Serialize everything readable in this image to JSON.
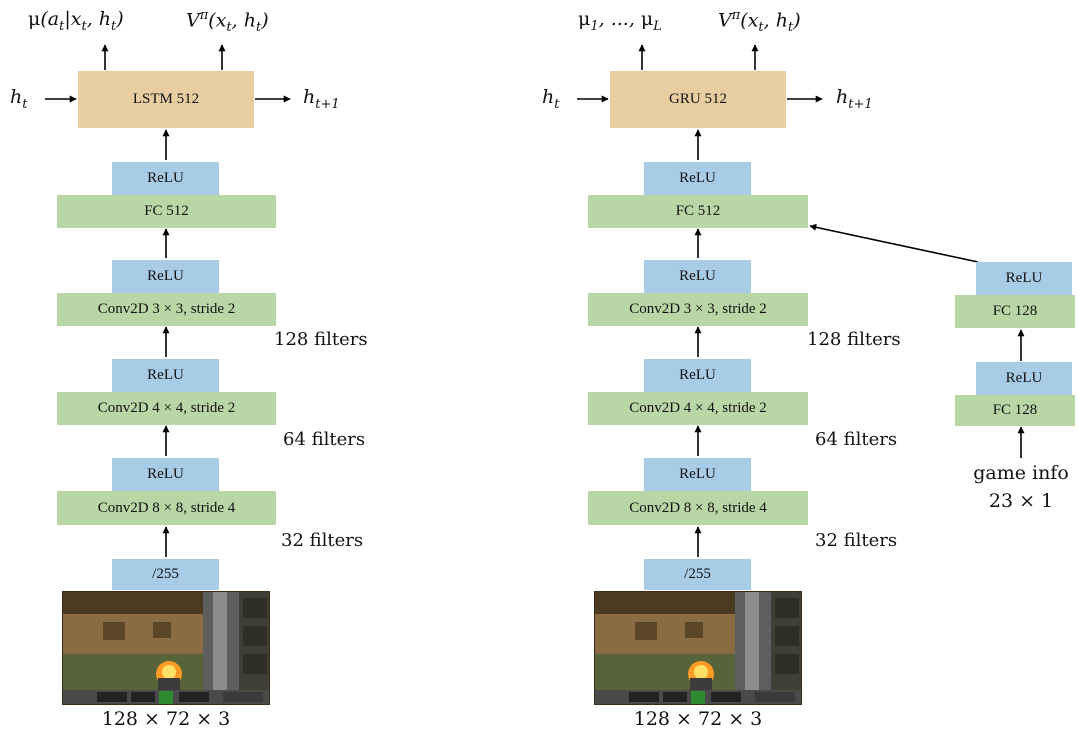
{
  "left": {
    "outputs": {
      "policy": "μ(a_t|x_t, h_t)",
      "value": "V^π(x_t, h_t)"
    },
    "hidden_in": "h_t",
    "hidden_out": "h_t+1",
    "recurrent": "LSTM 512",
    "relu": "ReLU",
    "fc": "FC 512",
    "conv3": "Conv2D 3 × 3, stride 2",
    "conv4": "Conv2D 4 × 4, stride 2",
    "conv8": "Conv2D 8 × 8, stride 4",
    "filters_128": "128 filters",
    "filters_64": "64 filters",
    "filters_32": "32 filters",
    "normalize": "/255",
    "input_caption": "128 × 72 × 3"
  },
  "right": {
    "outputs": {
      "measurements": "μ_1, ..., μ_L",
      "value": "V^π(x_t, h_t)"
    },
    "hidden_in": "h_t",
    "hidden_out": "h_t+1",
    "recurrent": "GRU 512",
    "relu": "ReLU",
    "fc": "FC 512",
    "conv3": "Conv2D 3 × 3, stride 2",
    "conv4": "Conv2D 4 × 4, stride 2",
    "conv8": "Conv2D 8 × 8, stride 4",
    "filters_128": "128 filters",
    "filters_64": "64 filters",
    "filters_32": "32 filters",
    "normalize": "/255",
    "input_caption": "128 × 72 × 3",
    "game_branch": {
      "fc_top": "FC 128",
      "fc_bottom": "FC 128",
      "relu": "ReLU",
      "label_line1": "game info",
      "label_line2": "23 × 1"
    }
  },
  "colors": {
    "dense_layer": "#b9d6a6",
    "activation": "#a8cbe6",
    "recurrent": "#e7cda0",
    "arrow": "#000000"
  }
}
